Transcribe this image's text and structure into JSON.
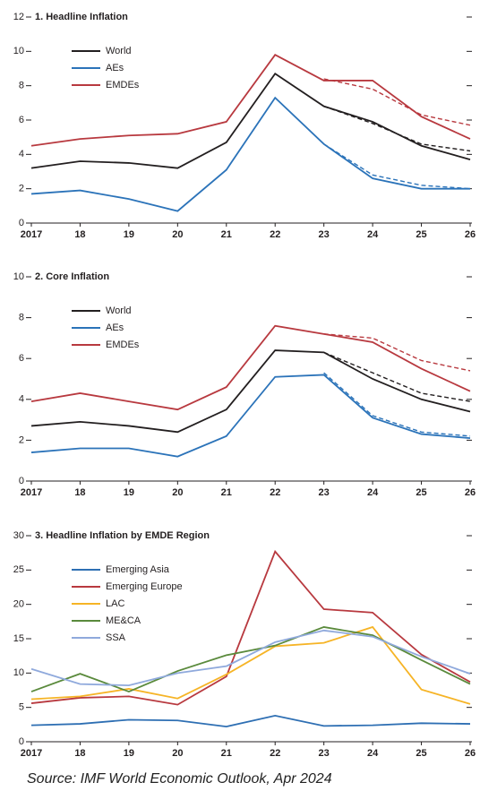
{
  "chart_data": [
    {
      "type": "line",
      "title": "1. Headline Inflation",
      "categories": [
        "2017",
        "18",
        "19",
        "20",
        "21",
        "22",
        "23",
        "24",
        "25",
        "26"
      ],
      "ylim": [
        0,
        12
      ],
      "yticks": [
        0,
        2,
        4,
        6,
        8,
        10,
        12
      ],
      "series": [
        {
          "name": "World",
          "color": "#231f20",
          "values": [
            3.2,
            3.6,
            3.5,
            3.2,
            4.7,
            8.7,
            6.8,
            5.9,
            4.5,
            3.7
          ],
          "dashed_values": [
            null,
            null,
            null,
            null,
            null,
            null,
            6.8,
            5.8,
            4.6,
            4.2
          ]
        },
        {
          "name": "AEs",
          "color": "#2b73b9",
          "values": [
            1.7,
            1.9,
            1.4,
            0.7,
            3.1,
            7.3,
            4.6,
            2.6,
            2.0,
            2.0
          ],
          "dashed_values": [
            null,
            null,
            null,
            null,
            null,
            null,
            4.6,
            2.8,
            2.2,
            2.0
          ]
        },
        {
          "name": "EMDEs",
          "color": "#b8393f",
          "values": [
            4.5,
            4.9,
            5.1,
            5.2,
            5.9,
            9.8,
            8.3,
            8.3,
            6.2,
            4.9
          ],
          "dashed_values": [
            null,
            null,
            null,
            null,
            null,
            null,
            8.4,
            7.8,
            6.3,
            5.7
          ]
        }
      ]
    },
    {
      "type": "line",
      "title": "2. Core Inflation",
      "categories": [
        "2017",
        "18",
        "19",
        "20",
        "21",
        "22",
        "23",
        "24",
        "25",
        "26"
      ],
      "ylim": [
        0,
        10
      ],
      "yticks": [
        0,
        2,
        4,
        6,
        8,
        10
      ],
      "series": [
        {
          "name": "World",
          "color": "#231f20",
          "values": [
            2.7,
            2.9,
            2.7,
            2.4,
            3.5,
            6.4,
            6.3,
            5.0,
            4.0,
            3.4
          ],
          "dashed_values": [
            null,
            null,
            null,
            null,
            null,
            null,
            6.3,
            5.3,
            4.3,
            3.9
          ]
        },
        {
          "name": "AEs",
          "color": "#2b73b9",
          "values": [
            1.4,
            1.6,
            1.6,
            1.2,
            2.2,
            5.1,
            5.2,
            3.1,
            2.3,
            2.1
          ],
          "dashed_values": [
            null,
            null,
            null,
            null,
            null,
            null,
            5.3,
            3.2,
            2.4,
            2.2
          ]
        },
        {
          "name": "EMDEs",
          "color": "#b8393f",
          "values": [
            3.9,
            4.3,
            3.9,
            3.5,
            4.6,
            7.6,
            7.2,
            6.8,
            5.5,
            4.4
          ],
          "dashed_values": [
            null,
            null,
            null,
            null,
            null,
            null,
            7.2,
            7.0,
            5.9,
            5.4
          ]
        }
      ]
    },
    {
      "type": "line",
      "title": "3. Headline Inflation by EMDE Region",
      "categories": [
        "2017",
        "18",
        "19",
        "20",
        "21",
        "22",
        "23",
        "24",
        "25",
        "26"
      ],
      "ylim": [
        0,
        30
      ],
      "yticks": [
        0,
        5,
        10,
        15,
        20,
        25,
        30
      ],
      "series": [
        {
          "name": "Emerging Asia",
          "color": "#2e6fb3",
          "values": [
            2.4,
            2.6,
            3.2,
            3.1,
            2.2,
            3.8,
            2.3,
            2.4,
            2.7,
            2.6
          ]
        },
        {
          "name": "Emerging Europe",
          "color": "#b8393f",
          "values": [
            5.6,
            6.4,
            6.6,
            5.4,
            9.5,
            27.7,
            19.3,
            18.8,
            12.7,
            8.7
          ]
        },
        {
          "name": "LAC",
          "color": "#f6b426",
          "values": [
            6.2,
            6.6,
            7.7,
            6.3,
            9.8,
            13.9,
            14.4,
            16.7,
            7.6,
            5.5
          ]
        },
        {
          "name": "ME&CA",
          "color": "#5a8a3c",
          "values": [
            7.3,
            9.9,
            7.3,
            10.3,
            12.6,
            14.0,
            16.7,
            15.5,
            11.9,
            8.4
          ]
        },
        {
          "name": "SSA",
          "color": "#8fa9dc",
          "values": [
            10.6,
            8.4,
            8.2,
            10.0,
            11.0,
            14.5,
            16.2,
            15.3,
            12.4,
            9.9
          ]
        }
      ]
    }
  ],
  "source": "Source: IMF World Economic Outlook, Apr 2024"
}
